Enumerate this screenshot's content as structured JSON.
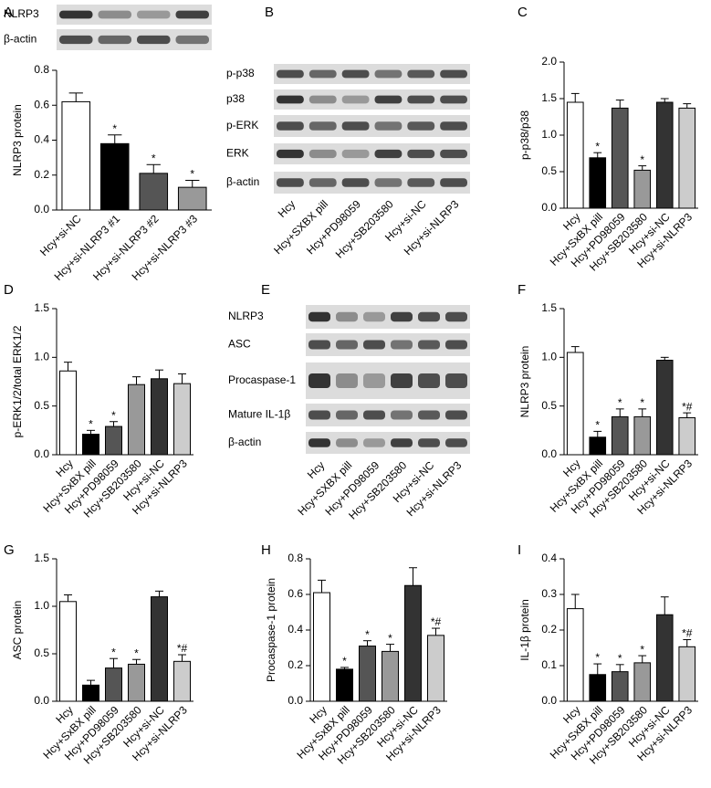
{
  "chart_data": [
    {
      "type": "bar",
      "panel": "A",
      "ylabel": "NLRP3 protein",
      "categories": [
        "Hcy+si-NC",
        "Hcy+si-NLRP3 #1",
        "Hcy+si-NLRP3 #2",
        "Hcy+si-NLRP3 #3"
      ],
      "values": [
        0.62,
        0.38,
        0.21,
        0.13
      ],
      "errors": [
        0.05,
        0.05,
        0.05,
        0.04
      ],
      "annotations": [
        null,
        "*",
        "*",
        "*"
      ],
      "colors": [
        "#ffffff",
        "#000000",
        "#555555",
        "#999999"
      ],
      "ylim": [
        0,
        0.8
      ],
      "yticks": [
        {
          "value": 0,
          "label": "0.0"
        },
        0.2,
        0.4,
        0.6,
        0.8
      ]
    },
    {
      "type": "bar",
      "panel": "C",
      "ylabel": "p-p38/p38",
      "categories": [
        "Hcy",
        "Hcy+SxBX pill",
        "Hcy+PD98059",
        "Hcy+SB203580",
        "Hcy+si-NC",
        "Hcy+si-NLRP3"
      ],
      "values": [
        1.45,
        0.69,
        1.37,
        0.52,
        1.45,
        1.37
      ],
      "errors": [
        0.12,
        0.07,
        0.11,
        0.06,
        0.05,
        0.06
      ],
      "annotations": [
        null,
        "*",
        null,
        "*",
        null,
        null
      ],
      "colors": [
        "#ffffff",
        "#000000",
        "#555555",
        "#999999",
        "#333333",
        "#cccccc"
      ],
      "ylim": [
        0,
        2
      ],
      "yticks": [
        {
          "value": 0,
          "label": "0.0"
        },
        0.5,
        {
          "value": 1,
          "label": "1.0"
        },
        1.5,
        {
          "value": 2,
          "label": "2.0"
        }
      ]
    },
    {
      "type": "bar",
      "panel": "D",
      "ylabel": "p-ERK1/2/total ERK1/2",
      "categories": [
        "Hcy",
        "Hcy+SxBX pill",
        "Hcy+PD98059",
        "Hcy+SB203580",
        "Hcy+si-NC",
        "Hcy+si-NLRP3"
      ],
      "values": [
        0.86,
        0.21,
        0.29,
        0.72,
        0.78,
        0.73
      ],
      "errors": [
        0.09,
        0.04,
        0.05,
        0.08,
        0.09,
        0.1
      ],
      "annotations": [
        null,
        "*",
        "*",
        null,
        null,
        null
      ],
      "colors": [
        "#ffffff",
        "#000000",
        "#555555",
        "#999999",
        "#333333",
        "#cccccc"
      ],
      "ylim": [
        0,
        1.5
      ],
      "yticks": [
        {
          "value": 0,
          "label": "0.0"
        },
        0.5,
        {
          "value": 1,
          "label": "1.0"
        },
        1.5
      ]
    },
    {
      "type": "bar",
      "panel": "F",
      "ylabel": "NLRP3 protein",
      "categories": [
        "Hcy",
        "Hcy+SxBX pill",
        "Hcy+PD98059",
        "Hcy+SB203580",
        "Hcy+si-NC",
        "Hcy+si-NLRP3"
      ],
      "values": [
        1.05,
        0.18,
        0.39,
        0.39,
        0.97,
        0.38
      ],
      "errors": [
        0.06,
        0.06,
        0.08,
        0.08,
        0.03,
        0.05
      ],
      "annotations": [
        null,
        "*",
        "*",
        "*",
        null,
        "*#"
      ],
      "colors": [
        "#ffffff",
        "#000000",
        "#555555",
        "#999999",
        "#333333",
        "#cccccc"
      ],
      "ylim": [
        0,
        1.5
      ],
      "yticks": [
        {
          "value": 0,
          "label": "0.0"
        },
        0.5,
        {
          "value": 1,
          "label": "1.0"
        },
        1.5
      ]
    },
    {
      "type": "bar",
      "panel": "G",
      "ylabel": "ASC protein",
      "categories": [
        "Hcy",
        "Hcy+SxBX pill",
        "Hcy+PD98059",
        "Hcy+SB203580",
        "Hcy+si-NC",
        "Hcy+si-NLRP3"
      ],
      "values": [
        1.05,
        0.17,
        0.35,
        0.39,
        1.1,
        0.42
      ],
      "errors": [
        0.07,
        0.05,
        0.1,
        0.05,
        0.06,
        0.07
      ],
      "annotations": [
        null,
        null,
        "*",
        "*",
        null,
        "*#"
      ],
      "colors": [
        "#ffffff",
        "#000000",
        "#555555",
        "#999999",
        "#333333",
        "#cccccc"
      ],
      "ylim": [
        0,
        1.5
      ],
      "yticks": [
        {
          "value": 0,
          "label": "0.0"
        },
        0.5,
        {
          "value": 1,
          "label": "1.0"
        },
        1.5
      ]
    },
    {
      "type": "bar",
      "panel": "H",
      "ylabel": "Procaspase-1 protein",
      "categories": [
        "Hcy",
        "Hcy+SxBX pill",
        "Hcy+PD98059",
        "Hcy+SB203580",
        "Hcy+si-NC",
        "Hcy+si-NLRP3"
      ],
      "values": [
        0.61,
        0.18,
        0.31,
        0.28,
        0.65,
        0.37
      ],
      "errors": [
        0.07,
        0.01,
        0.03,
        0.04,
        0.1,
        0.04
      ],
      "annotations": [
        null,
        "*",
        "*",
        "*",
        null,
        "*#"
      ],
      "colors": [
        "#ffffff",
        "#000000",
        "#555555",
        "#999999",
        "#333333",
        "#cccccc"
      ],
      "ylim": [
        0,
        0.8
      ],
      "yticks": [
        {
          "value": 0,
          "label": "0.0"
        },
        0.2,
        0.4,
        0.6,
        0.8
      ]
    },
    {
      "type": "bar",
      "panel": "I",
      "ylabel": "IL-1β protein",
      "categories": [
        "Hcy",
        "Hcy+SxBX pill",
        "Hcy+PD98059",
        "Hcy+SB203580",
        "Hcy+si-NC",
        "Hcy+si-NLRP3"
      ],
      "values": [
        0.26,
        0.075,
        0.083,
        0.108,
        0.243,
        0.153
      ],
      "errors": [
        0.04,
        0.03,
        0.02,
        0.02,
        0.05,
        0.02
      ],
      "annotations": [
        null,
        "*",
        "*",
        "*",
        null,
        "*#"
      ],
      "colors": [
        "#ffffff",
        "#000000",
        "#555555",
        "#999999",
        "#333333",
        "#cccccc"
      ],
      "ylim": [
        0,
        0.4
      ],
      "yticks": [
        {
          "value": 0,
          "label": "0.0"
        },
        0.1,
        0.2,
        0.3,
        0.4
      ]
    }
  ],
  "blots": [
    {
      "rows": [
        "NLRP3",
        "β-actin"
      ]
    },
    {
      "panel": "B",
      "rows": [
        "p-p38",
        "p38",
        "p-ERK",
        "ERK",
        "β-actin"
      ],
      "lanes": [
        "Hcy",
        "Hcy+SXBX pill",
        "Hcy+PD98059",
        "Hcy+SB203580",
        "Hcy+si-NC",
        "Hcy+si-NLRP3"
      ]
    },
    {
      "panel": "E",
      "rows": [
        "NLRP3",
        "ASC",
        "Procaspase-1",
        "Mature IL-1β",
        "β-actin"
      ],
      "lanes": [
        "Hcy",
        "Hcy+SXBX pill",
        "Hcy+PD98059",
        "Hcy+SB203580",
        "Hcy+si-NC",
        "Hcy+si-NLRP3"
      ]
    }
  ]
}
